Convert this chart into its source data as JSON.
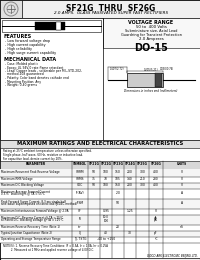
{
  "title": "SF21G  THRU  SF26G",
  "subtitle": "2.0 AMPS.  GLASS PASSIVATED SUPER FAST RECTIFIERS",
  "voltage_range_title": "VOLTAGE RANGE",
  "voltage_range_line1": "50 to  400 Volts",
  "voltage_range_line2": "2.0 Amperes",
  "package": "DO-15",
  "features_title": "FEATURES",
  "features": [
    "- Low forward voltage drop",
    "- High current capability",
    "- High reliability",
    "- High surge current capability"
  ],
  "mech_title": "MECHANICAL DATA",
  "mech": [
    "- Case: Molded plastic",
    "- Epoxy: UL 94V-0 rate flame retardant",
    "- Lead: Copper leads - solderable per MIL-STD-202,",
    "  method 208 guaranteed",
    "- Polarity: Color band denotes cathode end",
    "- Mounting Position: Any",
    "- Weight: 0.40 grams"
  ],
  "ratings_title": "MAXIMUM RATINGS AND ELECTRICAL CHARACTERISTICS",
  "ratings_note1": "Rating at 25°C ambient temperature unless otherwise specified.",
  "ratings_note2": "Single phase, half wave, 60 Hz, resistive or inductive load.",
  "ratings_note3": "For capacitive load, derate current by 20%.",
  "col_headers": [
    "PARAMETER",
    "SYMBOL",
    "SF21G",
    "SF22G",
    "SF23G",
    "SF24G",
    "SF25G",
    "SF26G",
    "UNITS"
  ],
  "table_rows": [
    [
      "Maximum Recurrent Peak Reverse Voltage",
      "VRRM",
      "50",
      "100",
      "150",
      "200",
      "300",
      "400",
      "V"
    ],
    [
      "Maximum RMS Voltage",
      "VRMS",
      "35",
      "70",
      "105",
      "140",
      "210",
      "280",
      "V"
    ],
    [
      "Maximum D C Blocking Voltage",
      "VDC",
      "50",
      "100",
      "150",
      "200",
      "300",
      "400",
      "V"
    ],
    [
      "Maximum Average Forward Current\n0.375\" lead length @ TA = 55°C",
      "IF(AV)",
      "",
      "",
      "2.0",
      "",
      "",
      "",
      "A"
    ],
    [
      "Peak Forward Surge Current, 8.3 ms single half\nsine-wave superimposed on rated load (JEDEC method)",
      "IFSM",
      "",
      "",
      "50",
      "",
      "",
      "",
      "A"
    ],
    [
      "Maximum Instantaneous Forward Voltage @ 2.0A",
      "VF",
      "",
      "0.95",
      "",
      "1.25",
      "",
      "V"
    ],
    [
      "Maximum D.C. Reverse Current @ TA = 25°C\nat Rated D.C. Blocking Voltage @ TA = 125°C",
      "IR",
      "",
      "10.0\n100",
      "",
      "",
      "",
      "μA\nμA"
    ],
    [
      "Maximum Reverse Recovery Time (Note 1)",
      "trr",
      "",
      "",
      "20",
      "",
      "",
      "",
      "nS"
    ],
    [
      "Typical Junction Capacitance (Note 2)",
      "CJ",
      "",
      "40",
      "",
      "30",
      "",
      "pF"
    ],
    [
      "Operating and Storage Temperature Range",
      "TJ, TSTG",
      "",
      "-40 to +150",
      "",
      "",
      "",
      "°C"
    ]
  ],
  "note1": "NOTE(S): 1. Reverse Recovery Time Conditions: IF = 0.5A, Ir = 1.0A, Irr = 0.25A",
  "note2": "         2. Measured at 1 MHz and applied reverse voltage of 4.0V D.C.",
  "company": "GOOD-ARK ELECTRONIC BEIJING LTD.",
  "bg_color": "#ffffff"
}
